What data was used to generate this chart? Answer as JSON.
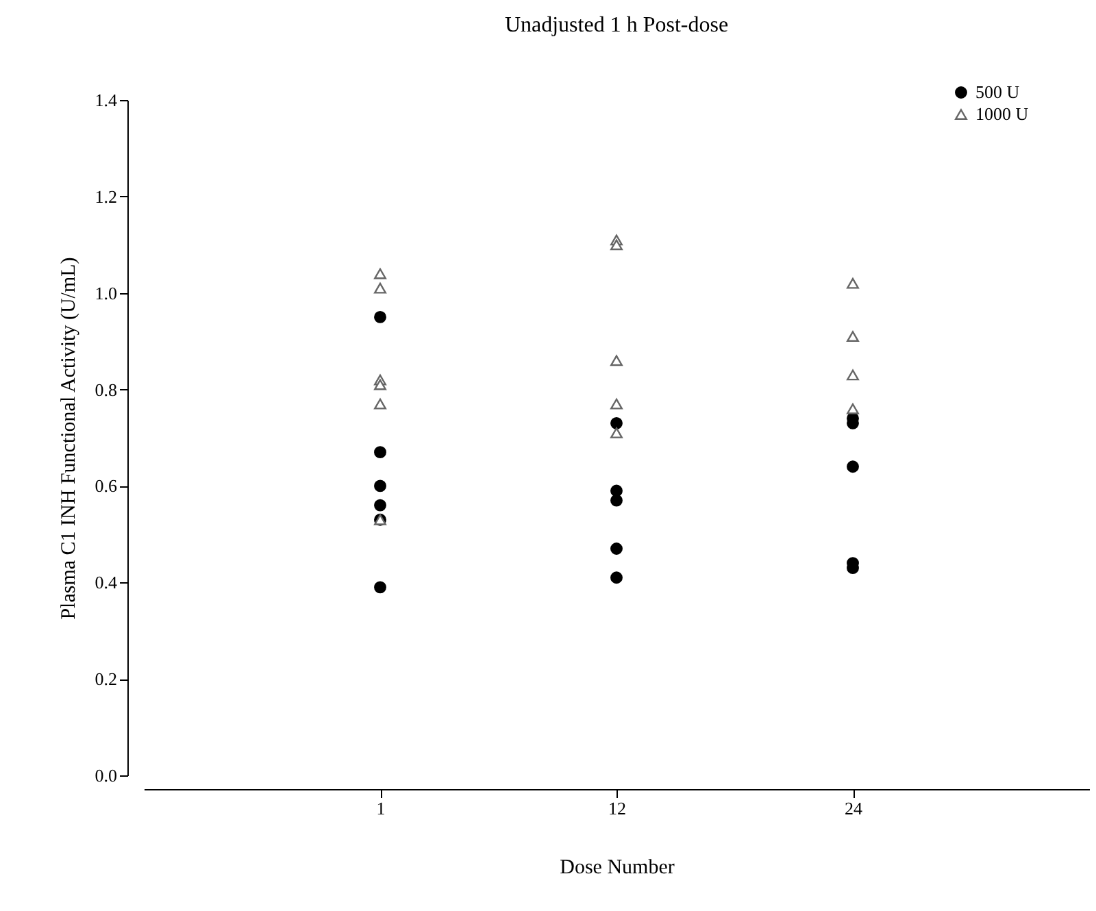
{
  "chart_data": {
    "type": "scatter",
    "title": "Unadjusted 1 h Post-dose",
    "xlabel": "Dose Number",
    "ylabel": "Plasma C1 INH Functional Activity (U/mL)",
    "categories": [
      "1",
      "12",
      "24"
    ],
    "series": [
      {
        "name": "500 U",
        "color": "#000000",
        "marker": "circle",
        "x": [
          "1",
          "1",
          "1",
          "1",
          "1",
          "1",
          "12",
          "12",
          "12",
          "12",
          "12",
          "24",
          "24",
          "24",
          "24",
          "24"
        ],
        "values": [
          0.95,
          0.67,
          0.6,
          0.56,
          0.53,
          0.39,
          0.73,
          0.59,
          0.57,
          0.47,
          0.41,
          0.74,
          0.73,
          0.64,
          0.44,
          0.43
        ]
      },
      {
        "name": "1000 U",
        "color": "#666666",
        "marker": "triangle",
        "x": [
          "1",
          "1",
          "1",
          "1",
          "1",
          "1",
          "12",
          "12",
          "12",
          "12",
          "12",
          "24",
          "24",
          "24",
          "24"
        ],
        "values": [
          1.04,
          1.01,
          0.82,
          0.81,
          0.77,
          0.53,
          1.11,
          1.1,
          0.86,
          0.77,
          0.71,
          1.02,
          0.91,
          0.83,
          0.76
        ]
      }
    ],
    "ylim": [
      0,
      1.4
    ],
    "yticks": [
      {
        "value": 0,
        "label": "0.0"
      },
      0.2,
      0.4,
      0.6,
      0.8,
      {
        "value": 1,
        "label": "1.0"
      },
      1.2,
      1.4
    ],
    "legend": "top right",
    "grid": false
  }
}
